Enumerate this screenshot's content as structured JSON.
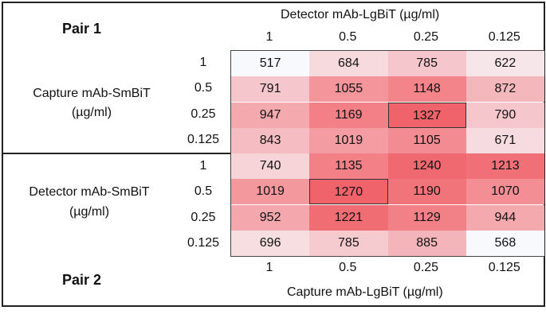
{
  "chart_data": [
    {
      "type": "heatmap",
      "title": "Pair 1",
      "xlabel": "Detector mAb-LgBiT (µg/ml)",
      "ylabel": "Capture mAb-SmBiT (µg/ml)",
      "ylabel_line1": "Capture mAb-SmBiT",
      "ylabel_line2": "(µg/ml)",
      "x": [
        "1",
        "0.5",
        "0.25",
        "0.125"
      ],
      "y": [
        "1",
        "0.5",
        "0.25",
        "0.125"
      ],
      "values": [
        [
          517,
          684,
          785,
          622
        ],
        [
          791,
          1055,
          1148,
          872
        ],
        [
          947,
          1169,
          1327,
          790
        ],
        [
          843,
          1019,
          1105,
          671
        ]
      ],
      "highlight": {
        "row": 2,
        "col": 2
      },
      "xaxis_position": "top"
    },
    {
      "type": "heatmap",
      "title": "Pair 2",
      "xlabel": "Capture mAb-LgBiT (µg/ml)",
      "ylabel": "Detector mAb-SmBiT (µg/ml)",
      "ylabel_line1": "Detector mAb-SmBiT",
      "ylabel_line2": "(µg/ml)",
      "x": [
        "1",
        "0.5",
        "0.25",
        "0.125"
      ],
      "y": [
        "1",
        "0.5",
        "0.25",
        "0.125"
      ],
      "values": [
        [
          740,
          1135,
          1240,
          1213
        ],
        [
          1019,
          1270,
          1190,
          1070
        ],
        [
          952,
          1221,
          1129,
          944
        ],
        [
          696,
          785,
          885,
          568
        ]
      ],
      "highlight": {
        "row": 1,
        "col": 1
      },
      "xaxis_position": "bottom"
    }
  ],
  "colors": {
    "low": "#f8f9fc",
    "high": "#f0636a",
    "border": "#222222"
  }
}
